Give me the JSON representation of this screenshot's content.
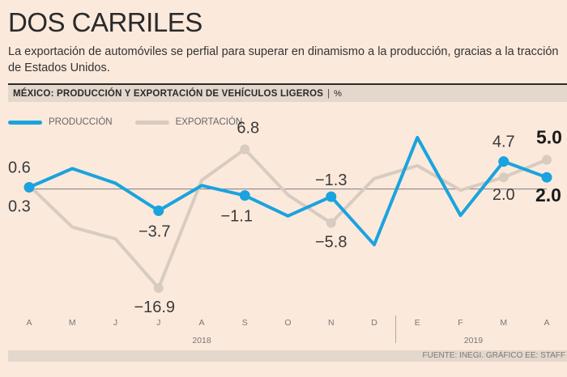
{
  "header": {
    "title": "DOS CARRILES",
    "subtitle_line1": "La exportación de automóviles se perfial para superar en dinamismo a la producción, gracias a la tracción",
    "subtitle_line2": "de Estados Unidos.",
    "band_title": "MÉXICO: PRODUCCIÓN Y EXPORTACIÓN DE VEHÍCULOS LIGEROS",
    "band_separator": "|",
    "band_unit": "%"
  },
  "legend": {
    "production_label": "PRODUCCIÓN",
    "export_label": "EXPORTACIÓN"
  },
  "colors": {
    "production": "#1aa3de",
    "export": "#d8cbc0",
    "background": "#fbe9dc"
  },
  "footer": {
    "source": "FUENTE: INEGI. GRÁFICO EE: STAFF"
  },
  "chart_data": {
    "type": "line",
    "title": "MÉXICO: PRODUCCIÓN Y EXPORTACIÓN DE VEHÍCULOS LIGEROS",
    "ylabel": "%",
    "categories": [
      "A",
      "M",
      "J",
      "J",
      "A",
      "S",
      "O",
      "N",
      "D",
      "E",
      "F",
      "M",
      "A"
    ],
    "year_groups": [
      {
        "label": "2018",
        "from": 0,
        "to": 8
      },
      {
        "label": "2019",
        "from": 9,
        "to": 12
      }
    ],
    "ylim": [
      -20,
      12
    ],
    "zero_line": true,
    "series": [
      {
        "name": "PRODUCCIÓN",
        "values": [
          0.3,
          3.5,
          1.0,
          -3.7,
          0.6,
          -1.1,
          -4.6,
          -1.3,
          -9.5,
          8.8,
          -4.5,
          4.7,
          2.0
        ],
        "marked_points": [
          0,
          3,
          5,
          7,
          11,
          12
        ]
      },
      {
        "name": "EXPORTACIÓN",
        "values": [
          0.6,
          -6.5,
          -8.5,
          -16.9,
          1.5,
          6.8,
          -1.0,
          -5.8,
          1.8,
          4.0,
          -0.2,
          2.0,
          5.0
        ],
        "marked_points": [
          3,
          5,
          7,
          11,
          12
        ]
      }
    ],
    "annotations": [
      {
        "text": "0.6",
        "series": "EXPORTACIÓN",
        "index": 0
      },
      {
        "text": "0.3",
        "series": "PRODUCCIÓN",
        "index": 0
      },
      {
        "text": "-3.7",
        "series": "PRODUCCIÓN",
        "index": 3
      },
      {
        "text": "-16.9",
        "series": "EXPORTACIÓN",
        "index": 3
      },
      {
        "text": "6.8",
        "series": "EXPORTACIÓN",
        "index": 5
      },
      {
        "text": "-1.1",
        "series": "PRODUCCIÓN",
        "index": 5
      },
      {
        "text": "-1.3",
        "series": "PRODUCCIÓN",
        "index": 7
      },
      {
        "text": "-5.8",
        "series": "EXPORTACIÓN",
        "index": 7
      },
      {
        "text": "4.7",
        "series": "PRODUCCIÓN",
        "index": 11
      },
      {
        "text": "2.0",
        "series": "EXPORTACIÓN",
        "index": 11
      },
      {
        "text": "5.0",
        "series": "EXPORTACIÓN",
        "index": 12
      },
      {
        "text": "2.0",
        "series": "PRODUCCIÓN",
        "index": 12
      }
    ]
  }
}
